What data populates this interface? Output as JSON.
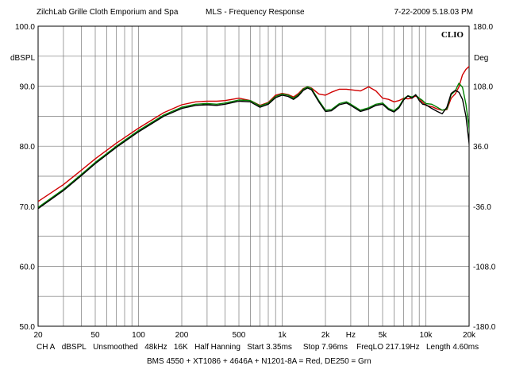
{
  "header": {
    "left": "ZilchLab Grille Cloth Emporium and Spa",
    "center": "MLS - Frequency Response",
    "right": "7-22-2009 5.18.03 PM"
  },
  "footer": {
    "settings": [
      "CH A",
      "dBSPL",
      "Unsmoothed",
      "48kHz",
      "16K",
      "Half Hanning",
      "Start 3.35ms",
      "Stop 7.96ms",
      "FreqLO 217.19Hz",
      "Length 4.60ms"
    ],
    "caption": "BMS 4550 + XT1086 + 4646A + N1201-8A = Red, DE250 = Grn"
  },
  "chart_data": {
    "type": "line",
    "logo": "CLIO",
    "ylabel": "dBSPL",
    "y2label": "Deg",
    "xscale": "log",
    "xlim": [
      20,
      20000
    ],
    "ylim": [
      50,
      100
    ],
    "y2lim": [
      -180,
      180
    ],
    "xticks": [
      20,
      50,
      100,
      200,
      500,
      1000,
      2000,
      5000,
      10000,
      20000
    ],
    "xtick_labels": [
      "20",
      "50",
      "100",
      "200",
      "500",
      "1k",
      "2k",
      "Hz",
      "5k",
      "10k",
      "20k"
    ],
    "xtick_label_freqs": [
      20,
      50,
      100,
      200,
      500,
      1000,
      2000,
      3000,
      5000,
      10000,
      20000
    ],
    "yticks": [
      50,
      60,
      70,
      80,
      90,
      100
    ],
    "ytick_labels": [
      "50.0",
      "60.0",
      "70.0",
      "80.0",
      "90.0",
      "100.0"
    ],
    "y2ticks": [
      -180,
      -108,
      -36,
      36,
      108,
      180
    ],
    "y2tick_labels": [
      "-180.0",
      "-108.0",
      "-36.0",
      "36.0",
      "108.0",
      "180.0"
    ],
    "grid": true,
    "series": [
      {
        "color": "#d00000",
        "points": [
          [
            20,
            70.8
          ],
          [
            30,
            73.6
          ],
          [
            40,
            76.0
          ],
          [
            50,
            77.9
          ],
          [
            70,
            80.5
          ],
          [
            100,
            83.0
          ],
          [
            150,
            85.6
          ],
          [
            200,
            86.9
          ],
          [
            250,
            87.4
          ],
          [
            300,
            87.5
          ],
          [
            350,
            87.5
          ],
          [
            400,
            87.6
          ],
          [
            500,
            88.0
          ],
          [
            600,
            87.6
          ],
          [
            700,
            86.8
          ],
          [
            800,
            87.3
          ],
          [
            900,
            88.5
          ],
          [
            1000,
            88.8
          ],
          [
            1100,
            88.6
          ],
          [
            1200,
            88.2
          ],
          [
            1300,
            88.8
          ],
          [
            1400,
            89.6
          ],
          [
            1500,
            89.9
          ],
          [
            1600,
            89.7
          ],
          [
            1800,
            88.7
          ],
          [
            2000,
            88.5
          ],
          [
            2200,
            89.0
          ],
          [
            2500,
            89.5
          ],
          [
            2800,
            89.5
          ],
          [
            3000,
            89.4
          ],
          [
            3500,
            89.2
          ],
          [
            4000,
            89.9
          ],
          [
            4500,
            89.2
          ],
          [
            5000,
            88.0
          ],
          [
            5500,
            87.8
          ],
          [
            6000,
            87.4
          ],
          [
            6500,
            87.6
          ],
          [
            7000,
            88.0
          ],
          [
            7500,
            87.9
          ],
          [
            8000,
            88.0
          ],
          [
            8500,
            88.4
          ],
          [
            9000,
            87.9
          ],
          [
            9500,
            87.3
          ],
          [
            10000,
            86.8
          ],
          [
            11000,
            86.6
          ],
          [
            12000,
            86.2
          ],
          [
            13000,
            86.0
          ],
          [
            14000,
            86.1
          ],
          [
            15000,
            88.0
          ],
          [
            16000,
            88.7
          ],
          [
            17000,
            89.9
          ],
          [
            18000,
            91.9
          ],
          [
            19000,
            92.8
          ],
          [
            20000,
            93.3
          ],
          [
            20500,
            93.5
          ],
          [
            21000,
            92.8
          ],
          [
            21500,
            90.5
          ],
          [
            22000,
            86.0
          ],
          [
            22500,
            82.0
          ],
          [
            23000,
            79.5
          ],
          [
            24000,
            79.0
          ]
        ]
      },
      {
        "color": "#008000",
        "points": [
          [
            20,
            69.8
          ],
          [
            30,
            72.8
          ],
          [
            40,
            75.3
          ],
          [
            50,
            77.3
          ],
          [
            70,
            80.0
          ],
          [
            100,
            82.6
          ],
          [
            150,
            85.2
          ],
          [
            200,
            86.5
          ],
          [
            250,
            87.0
          ],
          [
            300,
            87.1
          ],
          [
            350,
            87.0
          ],
          [
            400,
            87.2
          ],
          [
            500,
            87.7
          ],
          [
            600,
            87.6
          ],
          [
            700,
            86.7
          ],
          [
            800,
            87.2
          ],
          [
            900,
            88.3
          ],
          [
            1000,
            88.7
          ],
          [
            1100,
            88.5
          ],
          [
            1200,
            88.0
          ],
          [
            1300,
            88.6
          ],
          [
            1400,
            89.5
          ],
          [
            1500,
            89.9
          ],
          [
            1600,
            89.6
          ],
          [
            1800,
            87.6
          ],
          [
            2000,
            86.0
          ],
          [
            2200,
            86.1
          ],
          [
            2500,
            87.1
          ],
          [
            2800,
            87.4
          ],
          [
            3000,
            87.0
          ],
          [
            3500,
            86.0
          ],
          [
            4000,
            86.4
          ],
          [
            4500,
            87.0
          ],
          [
            5000,
            87.2
          ],
          [
            5500,
            86.3
          ],
          [
            6000,
            85.9
          ],
          [
            6500,
            86.6
          ],
          [
            7000,
            87.9
          ],
          [
            7500,
            88.4
          ],
          [
            8000,
            88.2
          ],
          [
            8500,
            88.5
          ],
          [
            9000,
            88.0
          ],
          [
            9500,
            87.6
          ],
          [
            10000,
            87.1
          ],
          [
            11000,
            87.0
          ],
          [
            12000,
            86.5
          ],
          [
            13000,
            86.0
          ],
          [
            14000,
            86.2
          ],
          [
            15000,
            88.6
          ],
          [
            16000,
            89.2
          ],
          [
            17000,
            90.5
          ],
          [
            18000,
            89.8
          ],
          [
            19000,
            87.0
          ],
          [
            20000,
            83.0
          ],
          [
            21000,
            77.0
          ],
          [
            22000,
            72.0
          ],
          [
            22500,
            69.0
          ],
          [
            23000,
            65.0
          ],
          [
            23500,
            61.5
          ],
          [
            24000,
            59.0
          ],
          [
            24500,
            62.0
          ],
          [
            25000,
            64.6
          ]
        ]
      },
      {
        "color": "#000000",
        "points": [
          [
            20,
            69.6
          ],
          [
            30,
            72.6
          ],
          [
            40,
            75.1
          ],
          [
            50,
            77.1
          ],
          [
            70,
            79.8
          ],
          [
            100,
            82.4
          ],
          [
            150,
            85.0
          ],
          [
            200,
            86.3
          ],
          [
            250,
            86.8
          ],
          [
            300,
            86.9
          ],
          [
            350,
            86.8
          ],
          [
            400,
            87.0
          ],
          [
            500,
            87.5
          ],
          [
            600,
            87.4
          ],
          [
            700,
            86.5
          ],
          [
            800,
            87.0
          ],
          [
            900,
            88.1
          ],
          [
            1000,
            88.5
          ],
          [
            1100,
            88.3
          ],
          [
            1200,
            87.8
          ],
          [
            1300,
            88.4
          ],
          [
            1400,
            89.3
          ],
          [
            1500,
            89.7
          ],
          [
            1600,
            89.4
          ],
          [
            1800,
            87.4
          ],
          [
            2000,
            85.8
          ],
          [
            2200,
            85.9
          ],
          [
            2500,
            86.9
          ],
          [
            2800,
            87.2
          ],
          [
            3000,
            86.8
          ],
          [
            3500,
            85.8
          ],
          [
            4000,
            86.2
          ],
          [
            4500,
            86.8
          ],
          [
            5000,
            87.0
          ],
          [
            5500,
            86.1
          ],
          [
            6000,
            85.7
          ],
          [
            6500,
            86.4
          ],
          [
            7000,
            87.7
          ],
          [
            7500,
            88.4
          ],
          [
            8000,
            88.0
          ],
          [
            8500,
            88.6
          ],
          [
            9000,
            87.6
          ],
          [
            9500,
            87.0
          ],
          [
            10000,
            86.9
          ],
          [
            11000,
            86.3
          ],
          [
            12000,
            85.8
          ],
          [
            13000,
            85.4
          ],
          [
            14000,
            86.5
          ],
          [
            15000,
            88.8
          ],
          [
            16000,
            89.3
          ],
          [
            17000,
            89.0
          ],
          [
            18000,
            87.8
          ],
          [
            19000,
            85.0
          ],
          [
            20000,
            80.5
          ],
          [
            21000,
            74.0
          ],
          [
            22000,
            66.0
          ],
          [
            23000,
            58.0
          ],
          [
            23500,
            54.0
          ],
          [
            24000,
            52.5
          ],
          [
            24500,
            56.0
          ],
          [
            25000,
            62.0
          ]
        ]
      }
    ]
  }
}
